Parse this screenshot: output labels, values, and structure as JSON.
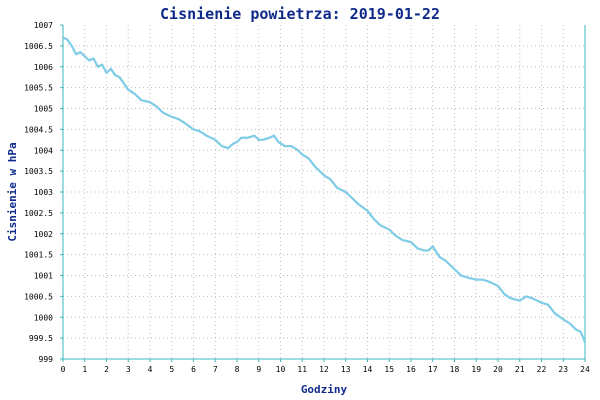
{
  "chart_data": {
    "type": "line",
    "title": "Cisnienie powietrza: 2019-01-22",
    "xlabel": "Godziny",
    "ylabel": "Cisnienie w hPa",
    "xlim": [
      0,
      24
    ],
    "ylim": [
      999,
      1007
    ],
    "x_ticks": [
      "0",
      "1",
      "2",
      "3",
      "4",
      "5",
      "6",
      "7",
      "8",
      "9",
      "10",
      "11",
      "12",
      "13",
      "14",
      "15",
      "16",
      "17",
      "18",
      "19",
      "20",
      "21",
      "22",
      "23",
      "24"
    ],
    "y_ticks": [
      "999",
      "999.5",
      "1000",
      "1000.5",
      "1001",
      "1001.5",
      "1002",
      "1002.5",
      "1003",
      "1003.5",
      "1004",
      "1004.5",
      "1005",
      "1005.5",
      "1006",
      "1006.5",
      "1007"
    ],
    "grid": true,
    "legend": "none",
    "colors": {
      "series": "#7ecce6",
      "axis": "#36b8c0",
      "title": "#102a8c"
    },
    "series": [
      {
        "x": [
          0,
          0.2,
          0.4,
          0.6,
          0.8,
          1.0,
          1.2,
          1.4,
          1.6,
          1.8,
          2.0,
          2.2,
          2.4,
          2.6,
          2.8,
          3.0,
          3.3,
          3.6,
          4.0,
          4.3,
          4.6,
          5.0,
          5.3,
          5.6,
          6.0,
          6.3,
          6.6,
          7.0,
          7.3,
          7.6,
          7.8,
          8.0,
          8.2,
          8.5,
          8.8,
          9.0,
          9.2,
          9.5,
          9.7,
          9.9,
          10.2,
          10.5,
          10.8,
          11.0,
          11.3,
          11.6,
          12.0,
          12.3,
          12.6,
          13.0,
          13.3,
          13.6,
          14.0,
          14.3,
          14.6,
          15.0,
          15.3,
          15.6,
          16.0,
          16.3,
          16.6,
          16.8,
          17.0,
          17.3,
          17.6,
          18.0,
          18.3,
          18.6,
          19.0,
          19.3,
          19.6,
          20.0,
          20.3,
          20.6,
          21.0,
          21.3,
          21.6,
          22.0,
          22.3,
          22.6,
          23.0,
          23.3,
          23.6,
          23.8,
          24.0
        ],
        "values": [
          1006.7,
          1006.65,
          1006.5,
          1006.3,
          1006.35,
          1006.25,
          1006.15,
          1006.2,
          1006.0,
          1006.05,
          1005.85,
          1005.95,
          1005.8,
          1005.75,
          1005.6,
          1005.45,
          1005.35,
          1005.2,
          1005.15,
          1005.05,
          1004.9,
          1004.8,
          1004.75,
          1004.65,
          1004.5,
          1004.45,
          1004.35,
          1004.25,
          1004.1,
          1004.05,
          1004.15,
          1004.2,
          1004.3,
          1004.3,
          1004.35,
          1004.25,
          1004.25,
          1004.3,
          1004.35,
          1004.2,
          1004.1,
          1004.1,
          1004.0,
          1003.9,
          1003.8,
          1003.6,
          1003.4,
          1003.3,
          1003.1,
          1003.0,
          1002.85,
          1002.7,
          1002.55,
          1002.35,
          1002.2,
          1002.1,
          1001.95,
          1001.85,
          1001.8,
          1001.65,
          1001.6,
          1001.6,
          1001.7,
          1001.45,
          1001.35,
          1001.15,
          1001.0,
          1000.95,
          1000.9,
          1000.9,
          1000.85,
          1000.75,
          1000.55,
          1000.45,
          1000.4,
          1000.5,
          1000.45,
          1000.35,
          1000.3,
          1000.1,
          999.95,
          999.85,
          999.7,
          999.65,
          999.4
        ]
      }
    ]
  }
}
